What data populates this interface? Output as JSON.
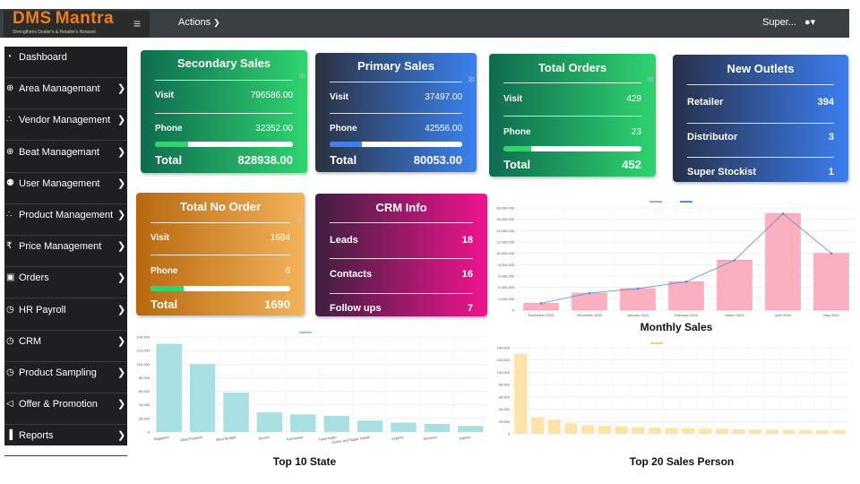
{
  "header": {
    "logo_title_dms": "DMS",
    "logo_title_mantra": "Mantra",
    "logo_tagline": "Strengthens Dealer's & Retailer's Network",
    "menu_icon": "hamburger-icon",
    "actions_label": "Actions",
    "user_label": "Super...",
    "user_icon": "user-icon"
  },
  "sidebar": {
    "items": [
      {
        "label": "Dashboard",
        "icon": "dashboard-icon",
        "chevron": false
      },
      {
        "label": "Area Managemant",
        "icon": "globe-icon",
        "chevron": true
      },
      {
        "label": "Vendor Management",
        "icon": "sitemap-icon",
        "chevron": true
      },
      {
        "label": "Beat Managemant",
        "icon": "globe-icon",
        "chevron": true
      },
      {
        "label": "User Management",
        "icon": "users-icon",
        "chevron": true
      },
      {
        "label": "Product Management",
        "icon": "sitemap-icon",
        "chevron": true
      },
      {
        "label": "Price Management",
        "icon": "rupee-icon",
        "chevron": true
      },
      {
        "label": "Orders",
        "icon": "money-icon",
        "chevron": true
      },
      {
        "label": "HR Payroll",
        "icon": "clock-icon",
        "chevron": true
      },
      {
        "label": "CRM",
        "icon": "clock-icon",
        "chevron": true
      },
      {
        "label": "Product Sampling",
        "icon": "clock-icon",
        "chevron": true
      },
      {
        "label": "Offer & Promotion",
        "icon": "bullhorn-icon",
        "chevron": true
      },
      {
        "label": "Reports",
        "icon": "chart-icon",
        "chevron": true
      }
    ]
  },
  "cards": {
    "secondary_sales": {
      "title": "Secondary Sales",
      "visit_label": "Visit",
      "visit_value": "796586.00",
      "phone_label": "Phone",
      "phone_value": "32352.00",
      "progress": 0.24,
      "total_label": "Total",
      "total_value": "828938.00"
    },
    "primary_sales": {
      "title": "Primary Sales",
      "visit_label": "Visit",
      "visit_value": "37497.00",
      "phone_label": "Phone",
      "phone_value": "42556.00",
      "progress": 0.24,
      "total_label": "Total",
      "total_value": "80053.00"
    },
    "total_orders": {
      "title": "Total Orders",
      "visit_label": "Visit",
      "visit_value": "429",
      "phone_label": "Phone",
      "phone_value": "23",
      "progress": 0.2,
      "total_label": "Total",
      "total_value": "452"
    },
    "new_outlets": {
      "title": "New Outlets",
      "retailer_label": "Retailer",
      "retailer_value": "394",
      "distributor_label": "Distributor",
      "distributor_value": "3",
      "super_label": "Super Stockist",
      "super_value": "1"
    },
    "total_no_order": {
      "title": "Total No Order",
      "visit_label": "Visit",
      "visit_value": "1684",
      "phone_label": "Phone",
      "phone_value": "6",
      "progress": 0.24,
      "total_label": "Total",
      "total_value": "1690"
    },
    "crm_info": {
      "title": "CRM Info",
      "leads_label": "Leads",
      "leads_value": "18",
      "contacts_label": "Contacts",
      "contacts_value": "16",
      "followups_label": "Follow ups",
      "followups_value": "7"
    }
  },
  "colors": {
    "secondary_grad": [
      "#0f6b4f",
      "#2fd46f"
    ],
    "primary_grad": [
      "#2b3140",
      "#3b82f0"
    ],
    "orders_grad": [
      "#0f6b4f",
      "#2fd46f"
    ],
    "outlets_grad": [
      "#27304a",
      "#3b7ef0"
    ],
    "noorder_grad": [
      "#b8690f",
      "#f4b35a"
    ],
    "crm_grad": [
      "#3f1f3f",
      "#f0138f"
    ],
    "monthly_bar": "#fbb0c0",
    "monthly_line": "#4a90e2",
    "state_bar": "#a8dfe0",
    "person_bar": "#fde3a7"
  },
  "chart_data": [
    {
      "type": "bar",
      "title": "Monthly Sales",
      "categories": [
        "November 2023",
        "December 2023",
        "January 2024",
        "February 2024",
        "March 2024",
        "April 2024",
        "May 2024"
      ],
      "series": [
        {
          "values": [
            1200000,
            3000000,
            3800000,
            5000000,
            8800000,
            17000000,
            10000000
          ]
        },
        {
          "values": [
            1200000,
            3000000,
            3800000,
            5000000,
            8800000,
            17000000,
            10000000
          ]
        }
      ],
      "yticks": [
        "0",
        "2,000,000",
        "4,000,000",
        "6,000,000",
        "8,000,000",
        "10,000,000",
        "12,000,000",
        "14,000,000",
        "16,000,000",
        "18,000,000"
      ],
      "ylim": [
        0,
        18000000
      ]
    },
    {
      "type": "bar",
      "title": "Top 10 State",
      "categories": [
        "Nagaland",
        "Uttar Pradesh",
        "West Bengal",
        "Assam",
        "Karnataka",
        "Tamil Nadu",
        "Dadra and Nagar Haveli",
        "Gujarat",
        "Mizoram",
        "Odisha"
      ],
      "values": [
        130000,
        100000,
        58000,
        29000,
        26000,
        24000,
        17000,
        14000,
        12000,
        9000
      ],
      "yticks": [
        "0",
        "20,000",
        "40,000",
        "60,000",
        "80,000",
        "100,000",
        "120,000",
        "140,000"
      ],
      "ylim": [
        0,
        140000
      ]
    },
    {
      "type": "bar",
      "title": "Top 20 Sales Person",
      "values": [
        130000,
        27000,
        23000,
        17000,
        14000,
        13000,
        12000,
        11000,
        10000,
        9500,
        9000,
        8500,
        8000,
        7500,
        7000,
        6800,
        6500,
        6200,
        6000,
        5800
      ],
      "yticks": [
        "0",
        "20,000",
        "40,000",
        "60,000",
        "80,000",
        "100,000",
        "120,000",
        "140,000"
      ],
      "ylim": [
        0,
        140000
      ]
    }
  ]
}
